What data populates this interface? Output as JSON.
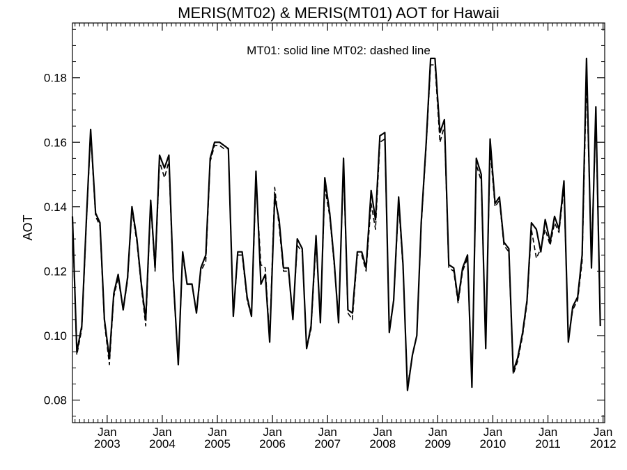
{
  "chart_data": {
    "type": "line",
    "title": "MERIS(MT02) & MERIS(MT01)  AOT for Hawaii",
    "annotation": "MT01: solid line   MT02: dashed line",
    "ylabel": "AOT",
    "xlabel": "",
    "ylim": [
      0.073,
      0.197
    ],
    "xlim": [
      2002.37,
      2012.03
    ],
    "y_ticks": [
      0.08,
      0.1,
      0.12,
      0.14,
      0.16,
      0.18
    ],
    "y_tick_labels": [
      "0.08",
      "0.10",
      "0.12",
      "0.14",
      "0.16",
      "0.18"
    ],
    "x_ticks": [
      {
        "pos": 2003.0,
        "month": "Jan",
        "year": "2003"
      },
      {
        "pos": 2004.0,
        "month": "Jan",
        "year": "2004"
      },
      {
        "pos": 2005.0,
        "month": "Jan",
        "year": "2005"
      },
      {
        "pos": 2006.0,
        "month": "Jan",
        "year": "2006"
      },
      {
        "pos": 2007.0,
        "month": "Jan",
        "year": "2007"
      },
      {
        "pos": 2008.0,
        "month": "Jan",
        "year": "2008"
      },
      {
        "pos": 2009.0,
        "month": "Jan",
        "year": "2009"
      },
      {
        "pos": 2010.0,
        "month": "Jan",
        "year": "2010"
      },
      {
        "pos": 2011.0,
        "month": "Jan",
        "year": "2011"
      },
      {
        "pos": 2012.0,
        "month": "Jan",
        "year": "2012"
      }
    ],
    "grid": false,
    "legend": "annotation-top",
    "series": [
      {
        "style": "solid",
        "points": [
          [
            2002.37,
            0.137
          ],
          [
            2002.45,
            0.095
          ],
          [
            2002.54,
            0.103
          ],
          [
            2002.62,
            0.135
          ],
          [
            2002.7,
            0.164
          ],
          [
            2002.79,
            0.138
          ],
          [
            2002.87,
            0.135
          ],
          [
            2002.95,
            0.105
          ],
          [
            2003.04,
            0.093
          ],
          [
            2003.12,
            0.113
          ],
          [
            2003.2,
            0.119
          ],
          [
            2003.29,
            0.108
          ],
          [
            2003.37,
            0.118
          ],
          [
            2003.45,
            0.14
          ],
          [
            2003.54,
            0.13
          ],
          [
            2003.62,
            0.116
          ],
          [
            2003.7,
            0.105
          ],
          [
            2003.79,
            0.142
          ],
          [
            2003.87,
            0.121
          ],
          [
            2003.95,
            0.156
          ],
          [
            2004.04,
            0.152
          ],
          [
            2004.12,
            0.156
          ],
          [
            2004.2,
            0.118
          ],
          [
            2004.29,
            0.091
          ],
          [
            2004.37,
            0.126
          ],
          [
            2004.45,
            0.116
          ],
          [
            2004.54,
            0.116
          ],
          [
            2004.62,
            0.107
          ],
          [
            2004.7,
            0.121
          ],
          [
            2004.79,
            0.125
          ],
          [
            2004.87,
            0.155
          ],
          [
            2004.95,
            0.16
          ],
          [
            2005.04,
            0.16
          ],
          [
            2005.12,
            0.159
          ],
          [
            2005.2,
            0.158
          ],
          [
            2005.29,
            0.106
          ],
          [
            2005.37,
            0.126
          ],
          [
            2005.45,
            0.126
          ],
          [
            2005.54,
            0.112
          ],
          [
            2005.62,
            0.106
          ],
          [
            2005.7,
            0.151
          ],
          [
            2005.79,
            0.116
          ],
          [
            2005.87,
            0.119
          ],
          [
            2005.95,
            0.098
          ],
          [
            2006.04,
            0.143
          ],
          [
            2006.12,
            0.136
          ],
          [
            2006.2,
            0.121
          ],
          [
            2006.29,
            0.121
          ],
          [
            2006.37,
            0.105
          ],
          [
            2006.45,
            0.13
          ],
          [
            2006.54,
            0.127
          ],
          [
            2006.62,
            0.096
          ],
          [
            2006.7,
            0.103
          ],
          [
            2006.79,
            0.131
          ],
          [
            2006.87,
            0.104
          ],
          [
            2006.95,
            0.149
          ],
          [
            2007.04,
            0.138
          ],
          [
            2007.12,
            0.123
          ],
          [
            2007.2,
            0.104
          ],
          [
            2007.29,
            0.155
          ],
          [
            2007.37,
            0.108
          ],
          [
            2007.45,
            0.107
          ],
          [
            2007.54,
            0.126
          ],
          [
            2007.62,
            0.126
          ],
          [
            2007.7,
            0.121
          ],
          [
            2007.79,
            0.145
          ],
          [
            2007.87,
            0.136
          ],
          [
            2007.95,
            0.162
          ],
          [
            2008.04,
            0.163
          ],
          [
            2008.12,
            0.101
          ],
          [
            2008.2,
            0.111
          ],
          [
            2008.29,
            0.143
          ],
          [
            2008.37,
            0.122
          ],
          [
            2008.45,
            0.083
          ],
          [
            2008.54,
            0.094
          ],
          [
            2008.62,
            0.1
          ],
          [
            2008.7,
            0.135
          ],
          [
            2008.79,
            0.16
          ],
          [
            2008.87,
            0.186
          ],
          [
            2008.95,
            0.186
          ],
          [
            2009.04,
            0.163
          ],
          [
            2009.12,
            0.167
          ],
          [
            2009.2,
            0.122
          ],
          [
            2009.29,
            0.121
          ],
          [
            2009.37,
            0.111
          ],
          [
            2009.45,
            0.121
          ],
          [
            2009.54,
            0.125
          ],
          [
            2009.62,
            0.084
          ],
          [
            2009.7,
            0.155
          ],
          [
            2009.79,
            0.15
          ],
          [
            2009.87,
            0.096
          ],
          [
            2009.95,
            0.161
          ],
          [
            2010.04,
            0.141
          ],
          [
            2010.12,
            0.143
          ],
          [
            2010.2,
            0.129
          ],
          [
            2010.29,
            0.127
          ],
          [
            2010.37,
            0.089
          ],
          [
            2010.45,
            0.093
          ],
          [
            2010.54,
            0.101
          ],
          [
            2010.62,
            0.111
          ],
          [
            2010.7,
            0.135
          ],
          [
            2010.79,
            0.133
          ],
          [
            2010.87,
            0.126
          ],
          [
            2010.95,
            0.136
          ],
          [
            2011.04,
            0.129
          ],
          [
            2011.12,
            0.137
          ],
          [
            2011.2,
            0.133
          ],
          [
            2011.29,
            0.148
          ],
          [
            2011.37,
            0.098
          ],
          [
            2011.45,
            0.109
          ],
          [
            2011.54,
            0.112
          ],
          [
            2011.62,
            0.125
          ],
          [
            2011.7,
            0.186
          ],
          [
            2011.79,
            0.121
          ],
          [
            2011.87,
            0.171
          ],
          [
            2011.95,
            0.103
          ]
        ]
      },
      {
        "style": "dashed",
        "points": [
          [
            2002.37,
            0.136
          ],
          [
            2002.45,
            0.094
          ],
          [
            2002.54,
            0.102
          ],
          [
            2002.62,
            0.134
          ],
          [
            2002.7,
            0.163
          ],
          [
            2002.79,
            0.137
          ],
          [
            2002.87,
            0.134
          ],
          [
            2002.95,
            0.104
          ],
          [
            2003.04,
            0.091
          ],
          [
            2003.12,
            0.112
          ],
          [
            2003.2,
            0.118
          ],
          [
            2003.29,
            0.108
          ],
          [
            2003.37,
            0.117
          ],
          [
            2003.45,
            0.139
          ],
          [
            2003.54,
            0.129
          ],
          [
            2003.62,
            0.115
          ],
          [
            2003.7,
            0.103
          ],
          [
            2003.79,
            0.141
          ],
          [
            2003.87,
            0.12
          ],
          [
            2003.95,
            0.154
          ],
          [
            2004.04,
            0.149
          ],
          [
            2004.12,
            0.154
          ],
          [
            2004.2,
            0.117
          ],
          [
            2004.29,
            0.091
          ],
          [
            2004.37,
            0.125
          ],
          [
            2004.45,
            0.116
          ],
          [
            2004.54,
            0.116
          ],
          [
            2004.62,
            0.107
          ],
          [
            2004.7,
            0.12
          ],
          [
            2004.79,
            0.123
          ],
          [
            2004.87,
            0.154
          ],
          [
            2004.95,
            0.159
          ],
          [
            2005.04,
            0.159
          ],
          [
            2005.12,
            0.158
          ],
          [
            2005.2,
            0.158
          ],
          [
            2005.29,
            0.106
          ],
          [
            2005.37,
            0.125
          ],
          [
            2005.45,
            0.125
          ],
          [
            2005.54,
            0.111
          ],
          [
            2005.62,
            0.106
          ],
          [
            2005.7,
            0.148
          ],
          [
            2005.79,
            0.122
          ],
          [
            2005.87,
            0.121
          ],
          [
            2005.95,
            0.099
          ],
          [
            2006.04,
            0.146
          ],
          [
            2006.12,
            0.134
          ],
          [
            2006.2,
            0.12
          ],
          [
            2006.29,
            0.12
          ],
          [
            2006.37,
            0.106
          ],
          [
            2006.45,
            0.128
          ],
          [
            2006.54,
            0.126
          ],
          [
            2006.62,
            0.096
          ],
          [
            2006.7,
            0.102
          ],
          [
            2006.79,
            0.129
          ],
          [
            2006.87,
            0.105
          ],
          [
            2006.95,
            0.146
          ],
          [
            2007.04,
            0.137
          ],
          [
            2007.12,
            0.122
          ],
          [
            2007.2,
            0.105
          ],
          [
            2007.29,
            0.153
          ],
          [
            2007.37,
            0.107
          ],
          [
            2007.45,
            0.105
          ],
          [
            2007.54,
            0.125
          ],
          [
            2007.62,
            0.125
          ],
          [
            2007.7,
            0.12
          ],
          [
            2007.79,
            0.141
          ],
          [
            2007.87,
            0.133
          ],
          [
            2007.95,
            0.16
          ],
          [
            2008.04,
            0.161
          ],
          [
            2008.12,
            0.102
          ],
          [
            2008.2,
            0.111
          ],
          [
            2008.29,
            0.141
          ],
          [
            2008.37,
            0.121
          ],
          [
            2008.45,
            0.084
          ],
          [
            2008.54,
            0.094
          ],
          [
            2008.62,
            0.1
          ],
          [
            2008.7,
            0.134
          ],
          [
            2008.79,
            0.159
          ],
          [
            2008.87,
            0.184
          ],
          [
            2008.95,
            0.184
          ],
          [
            2009.04,
            0.16
          ],
          [
            2009.12,
            0.165
          ],
          [
            2009.2,
            0.121
          ],
          [
            2009.29,
            0.12
          ],
          [
            2009.37,
            0.11
          ],
          [
            2009.45,
            0.12
          ],
          [
            2009.54,
            0.124
          ],
          [
            2009.62,
            0.085
          ],
          [
            2009.7,
            0.153
          ],
          [
            2009.79,
            0.148
          ],
          [
            2009.87,
            0.097
          ],
          [
            2009.95,
            0.158
          ],
          [
            2010.04,
            0.14
          ],
          [
            2010.12,
            0.142
          ],
          [
            2010.2,
            0.128
          ],
          [
            2010.29,
            0.126
          ],
          [
            2010.37,
            0.088
          ],
          [
            2010.45,
            0.092
          ],
          [
            2010.54,
            0.1
          ],
          [
            2010.62,
            0.11
          ],
          [
            2010.7,
            0.133
          ],
          [
            2010.79,
            0.124
          ],
          [
            2010.87,
            0.127
          ],
          [
            2010.95,
            0.133
          ],
          [
            2011.04,
            0.128
          ],
          [
            2011.12,
            0.135
          ],
          [
            2011.2,
            0.132
          ],
          [
            2011.29,
            0.146
          ],
          [
            2011.37,
            0.099
          ],
          [
            2011.45,
            0.108
          ],
          [
            2011.54,
            0.111
          ],
          [
            2011.62,
            0.123
          ],
          [
            2011.7,
            0.18
          ],
          [
            2011.79,
            0.124
          ],
          [
            2011.87,
            0.168
          ],
          [
            2011.95,
            0.103
          ]
        ]
      }
    ]
  }
}
